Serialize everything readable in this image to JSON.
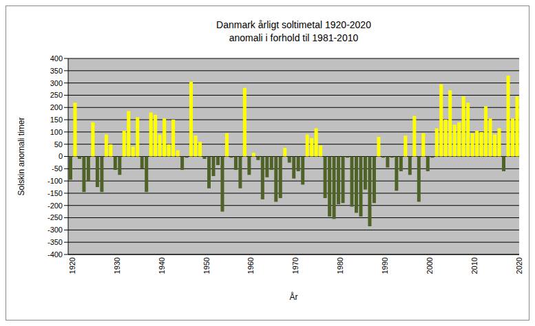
{
  "chart_data": {
    "type": "bar",
    "title": "Danmark årligt soltimetal 1920-2020",
    "subtitle": "anomali i forhold til 1981-2010",
    "x_label": "År",
    "y_label": "Solskin anomali timer",
    "categories": [
      "1920",
      null,
      null,
      null,
      null,
      null,
      null,
      null,
      null,
      null,
      "1930",
      null,
      null,
      null,
      null,
      null,
      null,
      null,
      null,
      null,
      "1940",
      null,
      null,
      null,
      null,
      null,
      null,
      null,
      null,
      null,
      "1950",
      null,
      null,
      null,
      null,
      null,
      null,
      null,
      null,
      null,
      "1960",
      null,
      null,
      null,
      null,
      null,
      null,
      null,
      null,
      null,
      "1970",
      null,
      null,
      null,
      null,
      null,
      null,
      null,
      null,
      null,
      "1980",
      null,
      null,
      null,
      null,
      null,
      null,
      null,
      null,
      null,
      "1990",
      null,
      null,
      null,
      null,
      null,
      null,
      null,
      null,
      null,
      "2000",
      null,
      null,
      null,
      null,
      null,
      null,
      null,
      null,
      null,
      "2010",
      null,
      null,
      null,
      null,
      null,
      null,
      null,
      null,
      null,
      "2020"
    ],
    "values": [
      -95,
      220,
      -10,
      -145,
      -100,
      140,
      -125,
      -145,
      90,
      50,
      -55,
      -75,
      105,
      185,
      40,
      160,
      -50,
      -145,
      180,
      170,
      90,
      155,
      50,
      150,
      25,
      -55,
      -5,
      305,
      85,
      60,
      -10,
      -130,
      -80,
      -35,
      -225,
      95,
      -5,
      -55,
      -130,
      280,
      -75,
      15,
      -15,
      -175,
      -85,
      -55,
      -185,
      -170,
      35,
      -25,
      -90,
      -60,
      -115,
      90,
      75,
      115,
      45,
      -170,
      -245,
      -255,
      -195,
      -190,
      -5,
      -205,
      -230,
      -245,
      -135,
      -285,
      -190,
      80,
      -5,
      -45,
      -5,
      -140,
      -60,
      85,
      -75,
      165,
      -185,
      95,
      -60,
      -5,
      115,
      295,
      150,
      270,
      130,
      140,
      245,
      220,
      95,
      105,
      100,
      205,
      155,
      90,
      115,
      -60,
      330,
      155,
      245
    ],
    "colors": [
      "#4f6228",
      "#ffff00",
      "#4f6228",
      "#4f6228",
      "#4f6228",
      "#ffff00",
      "#4f6228",
      "#4f6228",
      "#ffff00",
      "#ffff00",
      "#4f6228",
      "#4f6228",
      "#ffff00",
      "#ffff00",
      "#ffff00",
      "#ffff00",
      "#4f6228",
      "#4f6228",
      "#ffff00",
      "#ffff00",
      "#ffff00",
      "#ffff00",
      "#ffff00",
      "#ffff00",
      "#ffff00",
      "#4f6228",
      "#4f6228",
      "#ffff00",
      "#ffff00",
      "#ffff00",
      "#4f6228",
      "#4f6228",
      "#4f6228",
      "#4f6228",
      "#4f6228",
      "#ffff00",
      "#4f6228",
      "#4f6228",
      "#4f6228",
      "#ffff00",
      "#4f6228",
      "#ffff00",
      "#4f6228",
      "#4f6228",
      "#4f6228",
      "#4f6228",
      "#4f6228",
      "#4f6228",
      "#ffff00",
      "#4f6228",
      "#4f6228",
      "#4f6228",
      "#4f6228",
      "#ffff00",
      "#ffff00",
      "#ffff00",
      "#ffff00",
      "#4f6228",
      "#4f6228",
      "#4f6228",
      "#4f6228",
      "#4f6228",
      "#4f6228",
      "#4f6228",
      "#4f6228",
      "#4f6228",
      "#4f6228",
      "#4f6228",
      "#4f6228",
      "#ffff00",
      "#4f6228",
      "#4f6228",
      "#4f6228",
      "#4f6228",
      "#4f6228",
      "#ffff00",
      "#4f6228",
      "#ffff00",
      "#4f6228",
      "#ffff00",
      "#4f6228",
      "#4f6228",
      "#ffff00",
      "#ffff00",
      "#ffff00",
      "#ffff00",
      "#ffff00",
      "#ffff00",
      "#ffff00",
      "#ffff00",
      "#ffff00",
      "#ffff00",
      "#ffff00",
      "#ffff00",
      "#ffff00",
      "#ffff00",
      "#ffff00",
      "#4f6228",
      "#ffff00",
      "#ffff00",
      "#ffff00"
    ],
    "ylim": [
      -400,
      400
    ],
    "yticks": [
      -400,
      -350,
      -300,
      -250,
      -200,
      -150,
      -100,
      -50,
      0,
      50,
      100,
      150,
      200,
      250,
      300,
      350,
      400
    ],
    "grid": true
  }
}
